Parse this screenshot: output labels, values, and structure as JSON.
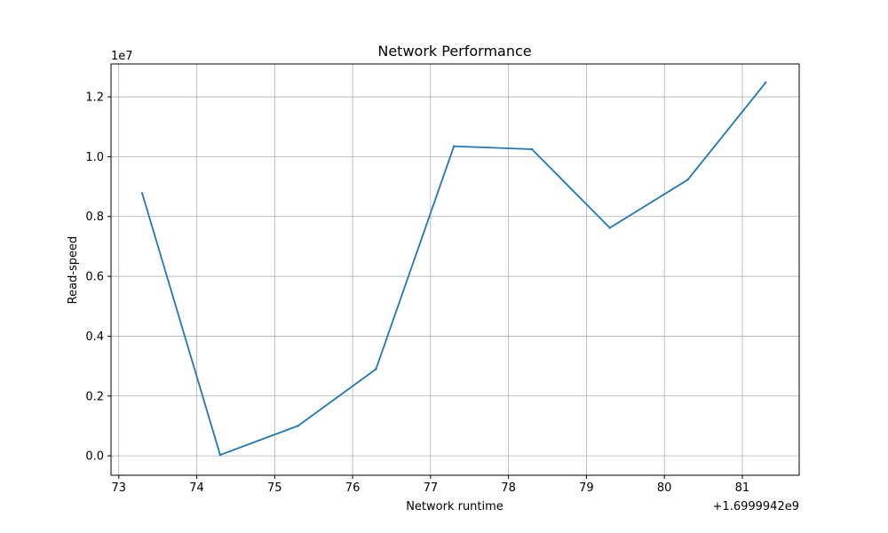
{
  "chart_data": {
    "type": "line",
    "title": "Network Performance",
    "xlabel": "Network runtime",
    "ylabel": "Read-speed",
    "x_offset_text": "+1.6999942e9",
    "y_scale_text": "1e7",
    "x_ticks": [
      73,
      74,
      75,
      76,
      77,
      78,
      79,
      80,
      81
    ],
    "x_tick_labels": [
      "73",
      "74",
      "75",
      "76",
      "77",
      "78",
      "79",
      "80",
      "81"
    ],
    "y_ticks": [
      0.0,
      0.2,
      0.4,
      0.6,
      0.8,
      1.0,
      1.2
    ],
    "y_tick_labels": [
      "0.0",
      "0.2",
      "0.4",
      "0.6",
      "0.8",
      "1.0",
      "1.2"
    ],
    "xlim": [
      72.9,
      81.73
    ],
    "ylim": [
      -0.065,
      1.31
    ],
    "grid": true,
    "series": [
      {
        "color": "#1f77b4",
        "x": [
          73.3,
          74.3,
          75.3,
          76.3,
          77.3,
          78.3,
          79.3,
          80.3,
          81.3
        ],
        "y": [
          0.878,
          0.003,
          0.1,
          0.29,
          1.035,
          1.025,
          0.762,
          0.923,
          1.248
        ]
      }
    ]
  }
}
